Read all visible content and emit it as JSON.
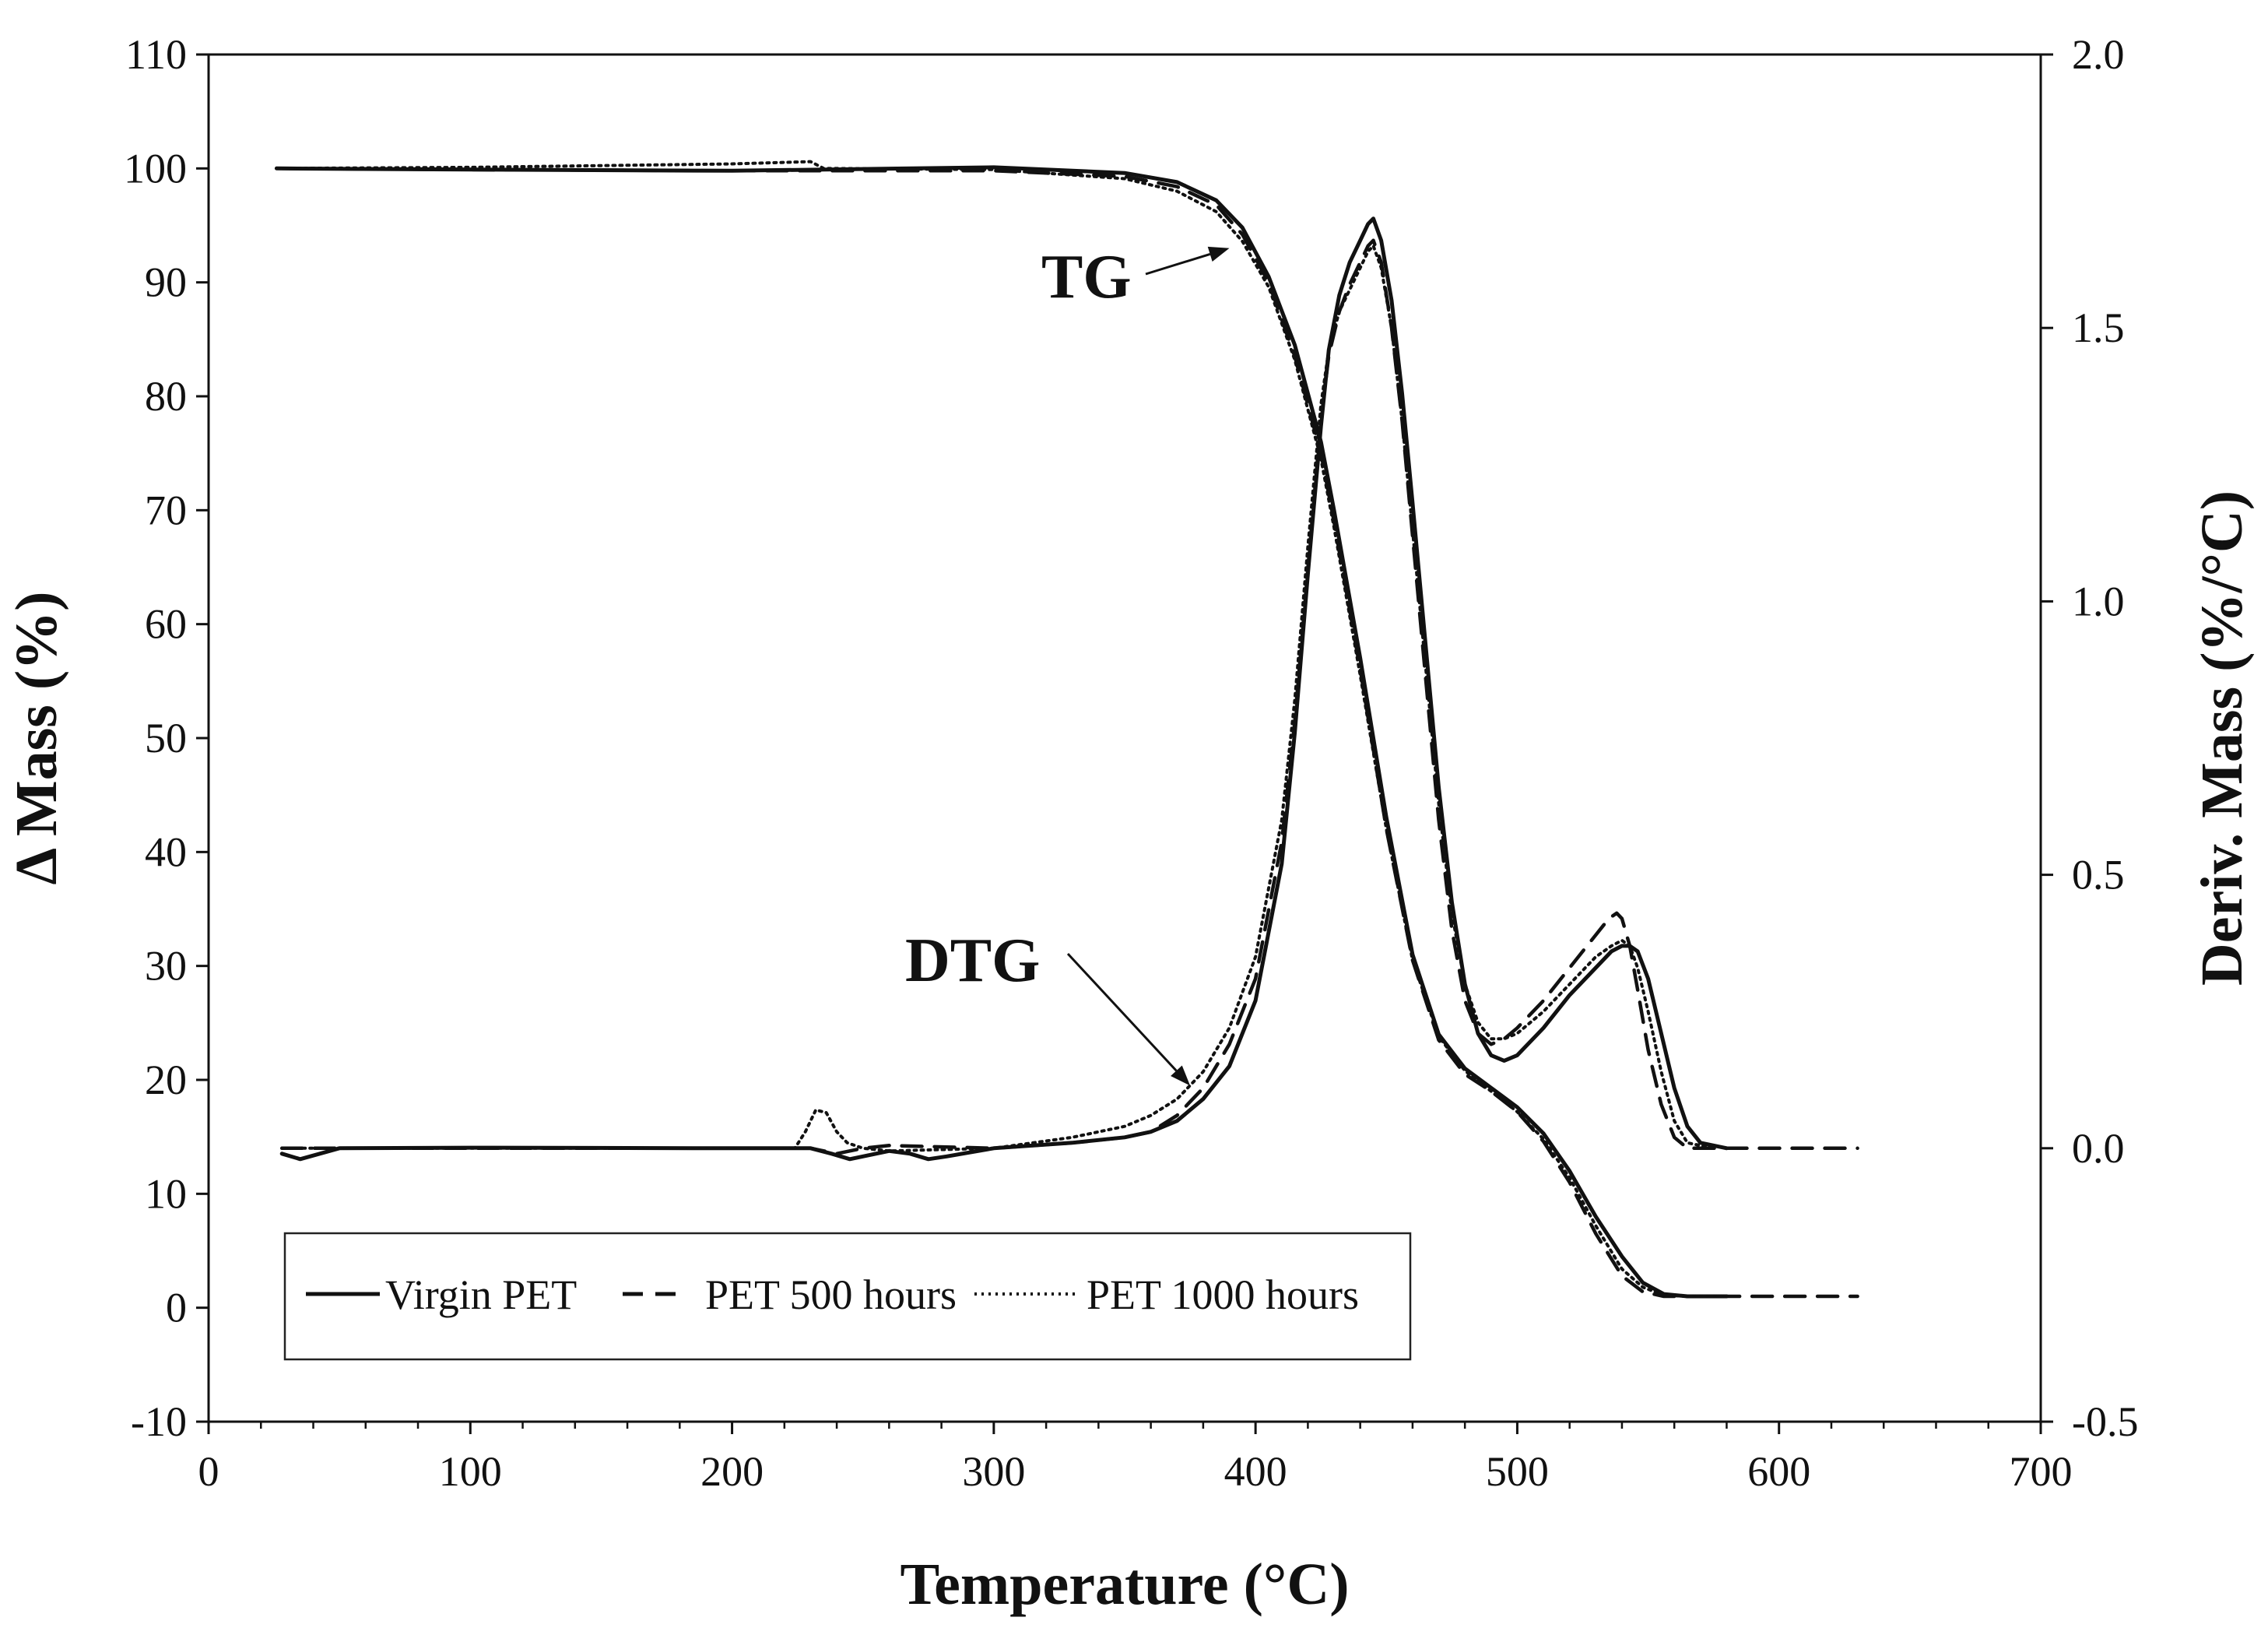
{
  "chart_data": {
    "type": "line",
    "title": "",
    "xlabel": "Temperature (°C)",
    "ylabel_left": "Δ Mass  (%)",
    "ylabel_right": "Deriv. Mass (%/°C)",
    "xlim": [
      0,
      700
    ],
    "ylim_left": [
      -10,
      110
    ],
    "ylim_right": [
      -0.5,
      2.0
    ],
    "x_ticks": [
      0,
      100,
      200,
      300,
      400,
      500,
      600,
      700
    ],
    "y_left_ticks": [
      -10,
      0,
      10,
      20,
      30,
      40,
      50,
      60,
      70,
      80,
      90,
      100,
      110
    ],
    "y_right_ticks": [
      "-0.5",
      "0.0",
      "0.5",
      "1.0",
      "1.5",
      "2.0"
    ],
    "grid": false,
    "legend_position": "bottom-left",
    "annotations": [
      {
        "text": "TG",
        "target_x": 390,
        "target_y_left": 93,
        "axis": "left"
      },
      {
        "text": "DTG",
        "target_x": 375,
        "target_y_left": 19.5,
        "axis": "left"
      }
    ],
    "legend": [
      {
        "name": "Virgin PET",
        "style": "solid"
      },
      {
        "name": "PET 500 hours",
        "style": "dashed"
      },
      {
        "name": "PET 1000 hours",
        "style": "dotted"
      }
    ],
    "series": [
      {
        "name": "Virgin PET",
        "curve": "TG",
        "axis": "left",
        "style": "solid",
        "x": [
          26,
          100,
          200,
          300,
          350,
          370,
          385,
          395,
          405,
          415,
          425,
          430,
          440,
          450,
          460,
          470,
          480,
          490,
          500,
          510,
          520,
          530,
          540,
          548,
          556,
          565,
          580
        ],
        "y": [
          100,
          99.9,
          99.8,
          100.1,
          99.6,
          98.8,
          97.2,
          94.8,
          90.5,
          84.5,
          76,
          70,
          57,
          43,
          31,
          24,
          21,
          19.3,
          17.6,
          15.3,
          12,
          8,
          4.5,
          2.2,
          1.2,
          1,
          1
        ]
      },
      {
        "name": "PET 500 hours",
        "curve": "TG",
        "axis": "left",
        "style": "dashed",
        "x": [
          26,
          100,
          200,
          300,
          350,
          370,
          385,
          395,
          405,
          415,
          425,
          430,
          440,
          450,
          460,
          470,
          480,
          490,
          500,
          510,
          520,
          530,
          540,
          548,
          556,
          565,
          580,
          600,
          630
        ],
        "y": [
          100,
          99.9,
          99.8,
          99.8,
          99.3,
          98.4,
          96.8,
          94.2,
          90,
          83.5,
          75,
          69,
          56,
          42,
          30.5,
          23.5,
          20.5,
          19,
          17.2,
          14.6,
          11,
          6.5,
          2.8,
          1.4,
          1,
          1,
          1,
          1,
          1
        ]
      },
      {
        "name": "PET 1000 hours",
        "curve": "TG",
        "axis": "left",
        "style": "dotted",
        "x": [
          26,
          100,
          200,
          230,
          235,
          300,
          350,
          370,
          385,
          395,
          405,
          415,
          425,
          430,
          440,
          450,
          460,
          470,
          480,
          490,
          500,
          510,
          520,
          530,
          540,
          548,
          556,
          565,
          580
        ],
        "y": [
          100,
          100.1,
          100.4,
          100.6,
          100,
          99.9,
          99.1,
          98,
          96.2,
          93.6,
          89.6,
          83.2,
          74.5,
          68.5,
          55.5,
          42,
          30.5,
          23.8,
          20.8,
          19,
          17.2,
          14.8,
          11.4,
          7.2,
          3.4,
          1.8,
          1.1,
          1,
          1
        ]
      },
      {
        "name": "Virgin PET",
        "curve": "DTG",
        "axis": "right",
        "style": "solid",
        "x": [
          28,
          35,
          50,
          100,
          200,
          230,
          238,
          245,
          250,
          260,
          268,
          275,
          282,
          300,
          330,
          350,
          360,
          370,
          380,
          390,
          400,
          410,
          415,
          420,
          425,
          428,
          432,
          436,
          440,
          443,
          445,
          448,
          452,
          456,
          460,
          465,
          470,
          475,
          480,
          485,
          490,
          495,
          500,
          510,
          520,
          530,
          536,
          540,
          543,
          546,
          550,
          555,
          560,
          565,
          570,
          580
        ],
        "y": [
          -0.01,
          -0.02,
          0,
          0.001,
          0,
          0,
          -0.01,
          -0.02,
          -0.015,
          -0.005,
          -0.01,
          -0.02,
          -0.015,
          0,
          0.01,
          0.02,
          0.03,
          0.05,
          0.09,
          0.15,
          0.27,
          0.52,
          0.76,
          1.05,
          1.32,
          1.46,
          1.56,
          1.62,
          1.66,
          1.69,
          1.7,
          1.66,
          1.55,
          1.38,
          1.18,
          0.92,
          0.66,
          0.45,
          0.3,
          0.21,
          0.17,
          0.16,
          0.17,
          0.22,
          0.28,
          0.33,
          0.36,
          0.37,
          0.37,
          0.36,
          0.31,
          0.21,
          0.11,
          0.04,
          0.01,
          0
        ]
      },
      {
        "name": "PET 500 hours",
        "curve": "DTG",
        "axis": "right",
        "style": "dashed",
        "x": [
          28,
          100,
          200,
          230,
          240,
          250,
          260,
          300,
          330,
          350,
          360,
          370,
          380,
          390,
          400,
          410,
          415,
          420,
          425,
          428,
          432,
          436,
          440,
          443,
          445,
          448,
          452,
          456,
          460,
          465,
          470,
          475,
          480,
          485,
          490,
          495,
          500,
          510,
          520,
          530,
          535,
          538,
          540,
          543,
          546,
          550,
          555,
          560,
          565,
          600,
          630
        ],
        "y": [
          0,
          0,
          0,
          0,
          -0.01,
          0,
          0.005,
          0,
          0.01,
          0.02,
          0.03,
          0.06,
          0.11,
          0.19,
          0.31,
          0.56,
          0.78,
          1.06,
          1.33,
          1.45,
          1.53,
          1.58,
          1.62,
          1.65,
          1.66,
          1.62,
          1.5,
          1.33,
          1.12,
          0.86,
          0.6,
          0.4,
          0.27,
          0.21,
          0.19,
          0.2,
          0.22,
          0.27,
          0.33,
          0.39,
          0.42,
          0.43,
          0.42,
          0.37,
          0.29,
          0.18,
          0.08,
          0.02,
          0,
          0,
          0
        ]
      },
      {
        "name": "PET 1000 hours",
        "curve": "DTG",
        "axis": "right",
        "style": "dotted",
        "x": [
          28,
          100,
          200,
          224,
          228,
          232,
          236,
          240,
          244,
          250,
          260,
          300,
          330,
          350,
          360,
          370,
          380,
          390,
          400,
          410,
          415,
          420,
          425,
          428,
          432,
          436,
          440,
          443,
          445,
          448,
          452,
          456,
          460,
          465,
          470,
          475,
          480,
          485,
          490,
          495,
          500,
          510,
          520,
          530,
          536,
          540,
          543,
          546,
          550,
          555,
          560,
          565,
          575
        ],
        "y": [
          0,
          0,
          0,
          0,
          0.03,
          0.07,
          0.065,
          0.03,
          0.01,
          0,
          -0.005,
          0,
          0.02,
          0.04,
          0.06,
          0.09,
          0.14,
          0.22,
          0.35,
          0.6,
          0.82,
          1.1,
          1.36,
          1.46,
          1.53,
          1.57,
          1.61,
          1.64,
          1.65,
          1.61,
          1.5,
          1.33,
          1.13,
          0.88,
          0.63,
          0.43,
          0.3,
          0.23,
          0.2,
          0.2,
          0.21,
          0.25,
          0.3,
          0.35,
          0.37,
          0.38,
          0.37,
          0.33,
          0.25,
          0.14,
          0.05,
          0.01,
          0
        ]
      }
    ]
  }
}
